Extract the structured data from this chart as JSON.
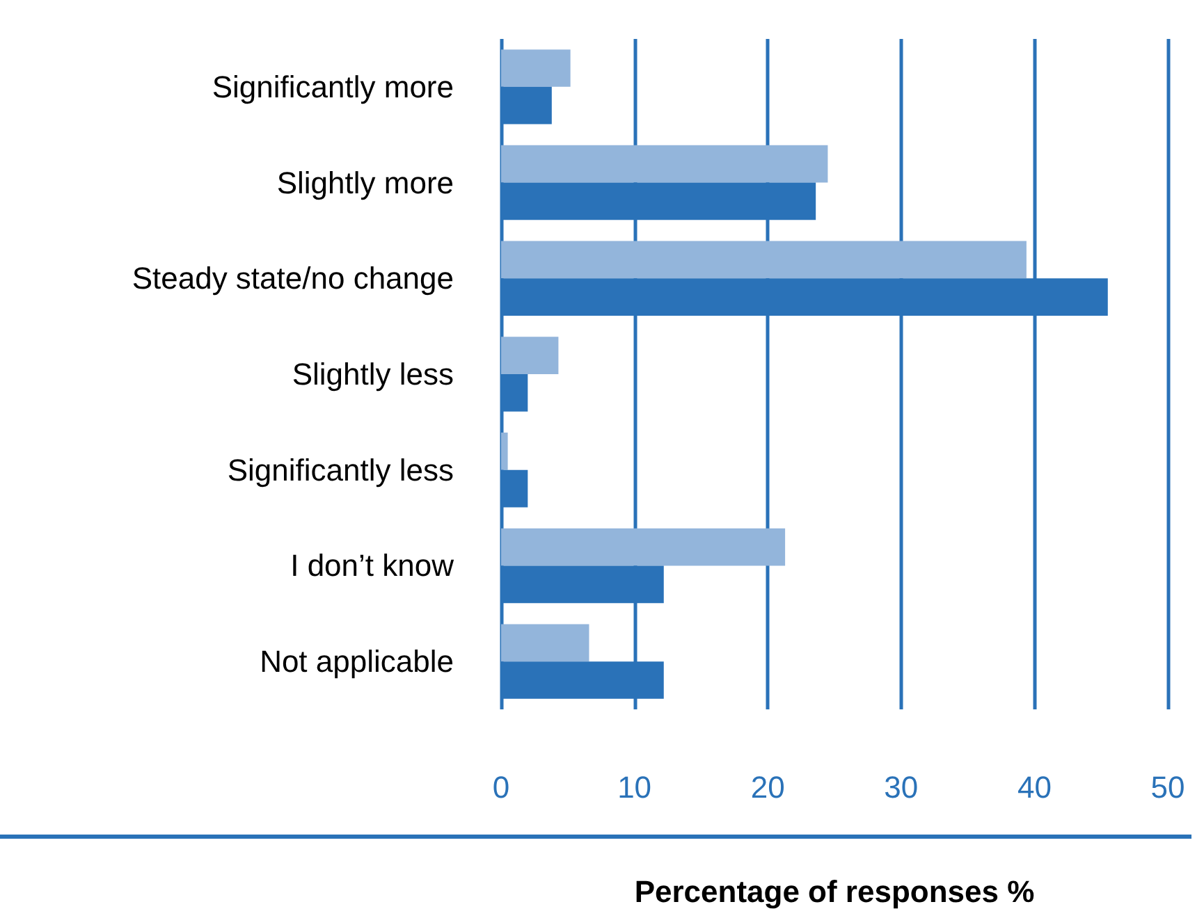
{
  "chart_data": {
    "type": "bar",
    "orientation": "horizontal",
    "xlabel": "Percentage of responses %",
    "categories": [
      "Significantly more",
      "Slightly more",
      "Steady state/no change",
      "Slightly less",
      "Significantly less",
      "I don’t know",
      "Not applicable"
    ],
    "series": [
      {
        "color": "#93b5db",
        "values": [
          5.2,
          24.5,
          39.4,
          4.3,
          0.5,
          21.3,
          6.6
        ]
      },
      {
        "color": "#2a72b8",
        "values": [
          3.8,
          23.6,
          45.5,
          2.0,
          2.0,
          12.2,
          12.2
        ]
      }
    ],
    "xlim": [
      0,
      50
    ],
    "xticks": [
      0,
      10,
      20,
      30,
      40,
      50
    ],
    "grid": "x"
  }
}
